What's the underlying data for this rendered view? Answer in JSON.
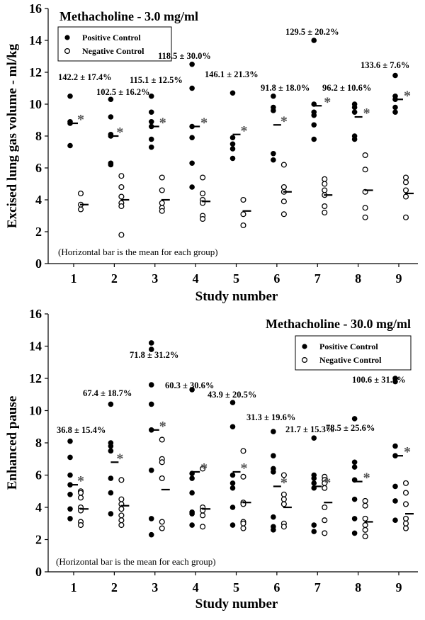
{
  "chart_data": [
    {
      "type": "scatter",
      "title": "Methacholine - 3.0 mg/ml",
      "xlabel": "Study number",
      "ylabel": "Excised lung gas volume - ml/kg",
      "categories": [
        "1",
        "2",
        "3",
        "4",
        "5",
        "6",
        "7",
        "8",
        "9"
      ],
      "ylim": [
        0,
        16
      ],
      "yticks": [
        "0",
        "2",
        "4",
        "6",
        "8",
        "10",
        "12",
        "14",
        "16"
      ],
      "legend": {
        "position": "top-left",
        "entries": [
          "Positive Control",
          "Negative Control"
        ]
      },
      "note": "(Horizontal bar is the mean for each group)",
      "series": [
        {
          "name": "Positive Control",
          "marker": "filled-circle",
          "points": [
            [
              10.5,
              8.9,
              8.8,
              7.4
            ],
            [
              10.3,
              9.2,
              8.1,
              8.0,
              6.3,
              6.2
            ],
            [
              10.5,
              9.5,
              8.9,
              8.6,
              7.8,
              7.3
            ],
            [
              12.5,
              11.0,
              8.6,
              7.9,
              6.3,
              4.8
            ],
            [
              10.7,
              7.9,
              7.5,
              7.2,
              6.6
            ],
            [
              10.5,
              9.8,
              9.6,
              6.9,
              6.5
            ],
            [
              14.0,
              10.0,
              9.5,
              9.3,
              8.7,
              7.8
            ],
            [
              10.0,
              9.8,
              9.5,
              8.0,
              7.8
            ],
            [
              11.8,
              10.5,
              10.3,
              9.8,
              9.5
            ]
          ],
          "means": [
            8.8,
            8.0,
            8.6,
            8.6,
            8.1,
            8.7,
            9.9,
            9.2,
            10.3
          ]
        },
        {
          "name": "Negative Control",
          "marker": "open-circle",
          "points": [
            [
              4.4,
              3.7,
              3.4
            ],
            [
              5.5,
              4.8,
              4.2,
              3.8,
              3.6,
              1.8
            ],
            [
              5.4,
              4.6,
              3.8,
              3.5,
              3.3
            ],
            [
              5.4,
              4.4,
              4.0,
              3.8,
              3.0,
              2.8
            ],
            [
              4.0,
              3.1,
              2.4
            ],
            [
              6.2,
              4.8,
              4.5,
              3.9,
              3.1
            ],
            [
              5.3,
              5.0,
              4.6,
              4.3,
              3.6,
              3.2
            ],
            [
              6.8,
              5.9,
              4.5,
              3.5,
              2.9
            ],
            [
              5.4,
              5.1,
              4.6,
              4.2,
              2.9
            ]
          ],
          "means": [
            3.7,
            4.0,
            4.0,
            3.9,
            3.3,
            4.5,
            4.3,
            4.6,
            4.4
          ]
        }
      ],
      "annotations": [
        "142.2 ± 17.4%",
        "102.5 ± 16.2%",
        "115.1 ± 12.5%",
        "118.5 ± 30.0%",
        "146.1 ± 21.3%",
        "91.8 ± 18.0%",
        "129.5 ± 20.2%",
        "96.2 ± 10.6%",
        "133.6 ± 7.6%"
      ],
      "significance_marker": "*"
    },
    {
      "type": "scatter",
      "title": "Methacholine - 30.0 mg/ml",
      "xlabel": "Study number",
      "ylabel": "Enhanced pause",
      "categories": [
        "1",
        "2",
        "3",
        "4",
        "5",
        "6",
        "7",
        "8",
        "9"
      ],
      "ylim": [
        0,
        16
      ],
      "yticks": [
        "0",
        "2",
        "4",
        "6",
        "8",
        "10",
        "12",
        "14",
        "16"
      ],
      "legend": {
        "position": "top-right",
        "entries": [
          "Positive Control",
          "Negative Control"
        ]
      },
      "note": "(Horizontal bar is the mean for each group)",
      "series": [
        {
          "name": "Positive Control",
          "marker": "filled-circle",
          "points": [
            [
              8.1,
              7.1,
              6.0,
              5.4,
              4.8,
              3.9,
              3.3
            ],
            [
              10.4,
              8.0,
              7.8,
              7.5,
              5.8,
              4.9,
              3.6
            ],
            [
              14.2,
              13.8,
              11.6,
              10.4,
              8.8,
              6.3,
              3.3,
              2.3
            ],
            [
              11.3,
              6.1,
              5.8,
              4.9,
              3.7,
              3.6,
              2.9
            ],
            [
              10.5,
              9.0,
              6.0,
              5.5,
              5.2,
              4.0,
              2.9
            ],
            [
              8.7,
              7.2,
              6.4,
              6.2,
              3.4,
              2.8,
              2.6
            ],
            [
              8.3,
              6.0,
              5.8,
              5.5,
              5.2,
              2.9,
              2.5
            ],
            [
              9.5,
              6.8,
              6.5,
              5.7,
              4.5,
              3.3,
              2.4
            ],
            [
              12.0,
              11.8,
              7.8,
              7.2,
              5.3,
              4.4,
              3.2
            ]
          ],
          "means": [
            5.4,
            6.8,
            8.8,
            6.2,
            6.2,
            5.3,
            5.3,
            5.6,
            7.2
          ]
        },
        {
          "name": "Negative Control",
          "marker": "open-circle",
          "points": [
            [
              5.0,
              4.9,
              4.6,
              4.0,
              3.8,
              3.1,
              2.9
            ],
            [
              5.7,
              4.5,
              4.2,
              3.9,
              3.5,
              3.2,
              2.9
            ],
            [
              8.2,
              7.0,
              6.8,
              5.8,
              3.1,
              2.7
            ],
            [
              6.4,
              4.0,
              3.8,
              3.5,
              2.8
            ],
            [
              7.5,
              5.9,
              4.3,
              4.2,
              3.1,
              3.0,
              2.7
            ],
            [
              6.0,
              4.8,
              4.5,
              4.2,
              3.0,
              2.8
            ],
            [
              5.9,
              5.7,
              5.5,
              5.2,
              4.0,
              3.2,
              2.4
            ],
            [
              4.4,
              4.1,
              3.3,
              2.9,
              2.6,
              2.2
            ],
            [
              5.5,
              4.9,
              4.2,
              3.3,
              3.0,
              2.7
            ]
          ],
          "means": [
            3.9,
            4.1,
            5.1,
            3.9,
            4.3,
            4.0,
            4.3,
            3.1,
            3.6
          ]
        }
      ],
      "annotations": [
        "36.8 ± 15.4%",
        "67.4 ± 18.7%",
        "71.8 ± 31.2%",
        "60.3 ± 30.6%",
        "43.9 ± 20.5%",
        "31.3 ± 19.6%",
        "21.7 ± 15.3%",
        "78.5 ± 25.6%",
        "100.6 ± 31.3%"
      ],
      "significance_marker": "*"
    }
  ]
}
